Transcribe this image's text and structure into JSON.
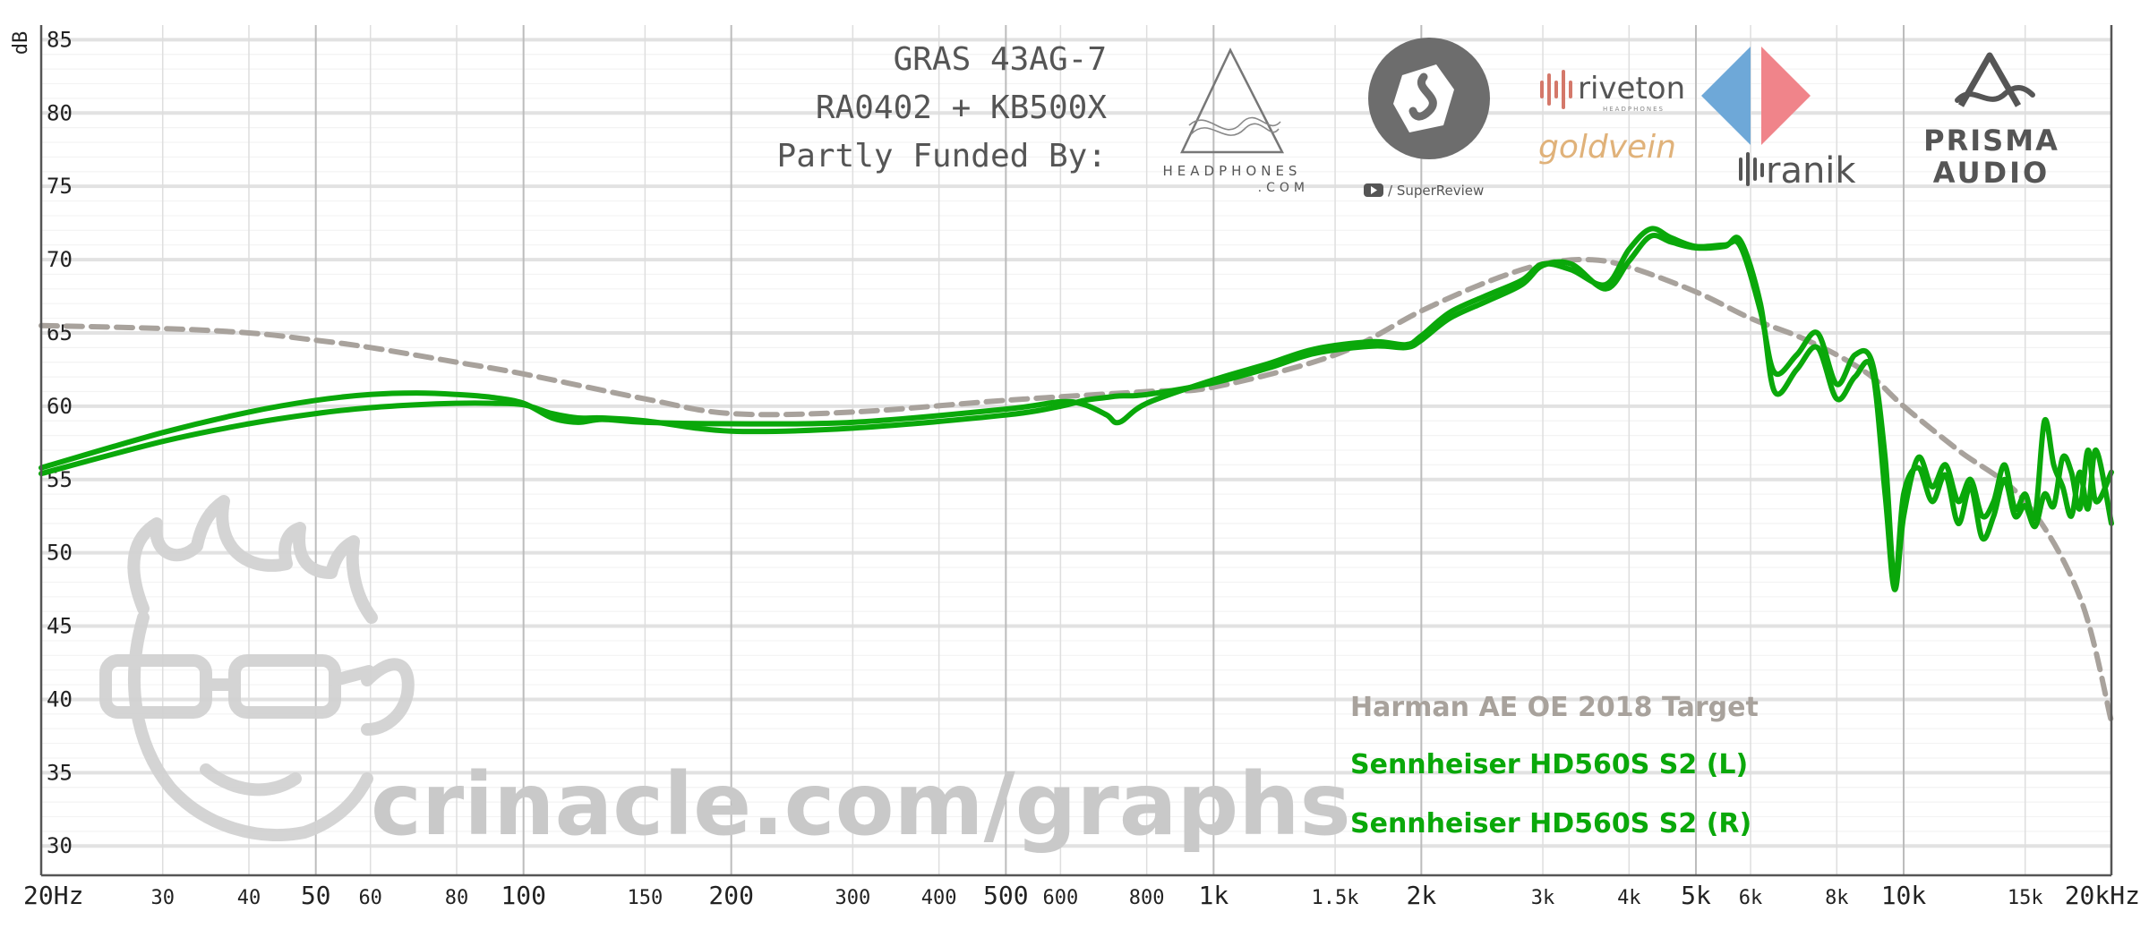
{
  "chart_data": {
    "type": "line",
    "xscale": "log",
    "xlim": [
      20,
      20000
    ],
    "ylim": [
      28,
      86
    ],
    "ylabel": "dB",
    "grid": true,
    "x_ticks": [
      {
        "v": 20,
        "label": "20Hz",
        "major": true
      },
      {
        "v": 30,
        "label": "30",
        "major": false
      },
      {
        "v": 40,
        "label": "40",
        "major": false
      },
      {
        "v": 50,
        "label": "50",
        "major": true
      },
      {
        "v": 60,
        "label": "60",
        "major": false
      },
      {
        "v": 80,
        "label": "80",
        "major": false
      },
      {
        "v": 100,
        "label": "100",
        "major": true
      },
      {
        "v": 150,
        "label": "150",
        "major": false
      },
      {
        "v": 200,
        "label": "200",
        "major": true
      },
      {
        "v": 300,
        "label": "300",
        "major": false
      },
      {
        "v": 400,
        "label": "400",
        "major": false
      },
      {
        "v": 500,
        "label": "500",
        "major": true
      },
      {
        "v": 600,
        "label": "600",
        "major": false
      },
      {
        "v": 800,
        "label": "800",
        "major": false
      },
      {
        "v": 1000,
        "label": "1k",
        "major": true
      },
      {
        "v": 1500,
        "label": "1.5k",
        "major": false
      },
      {
        "v": 2000,
        "label": "2k",
        "major": true
      },
      {
        "v": 3000,
        "label": "3k",
        "major": false
      },
      {
        "v": 4000,
        "label": "4k",
        "major": false
      },
      {
        "v": 5000,
        "label": "5k",
        "major": true
      },
      {
        "v": 6000,
        "label": "6k",
        "major": false
      },
      {
        "v": 8000,
        "label": "8k",
        "major": false
      },
      {
        "v": 10000,
        "label": "10k",
        "major": true
      },
      {
        "v": 15000,
        "label": "15k",
        "major": false
      },
      {
        "v": 20000,
        "label": "20kHz",
        "major": true
      }
    ],
    "y_ticks": [
      30,
      35,
      40,
      45,
      50,
      55,
      60,
      65,
      70,
      75,
      80,
      85
    ],
    "series": [
      {
        "name": "Harman AE OE 2018 Target",
        "color": "#a8a29c",
        "dashed": true,
        "x": [
          20,
          30,
          40,
          50,
          60,
          80,
          100,
          150,
          200,
          300,
          500,
          800,
          1000,
          1500,
          2000,
          2500,
          3000,
          3500,
          4000,
          5000,
          6000,
          7000,
          8000,
          9000,
          10000,
          12000,
          15000,
          18000,
          20000
        ],
        "y": [
          65.5,
          65.3,
          65.0,
          64.5,
          64.0,
          63.0,
          62.2,
          60.5,
          59.5,
          59.6,
          60.4,
          61.0,
          61.3,
          63.5,
          66.5,
          68.5,
          69.7,
          70.0,
          69.5,
          67.8,
          66.0,
          64.8,
          63.5,
          62.0,
          60.0,
          57.0,
          53.5,
          47.0,
          38.5
        ]
      },
      {
        "name": "Sennheiser HD560S S2 (L)",
        "color": "#0aa80a",
        "dashed": false,
        "x": [
          20,
          30,
          40,
          50,
          60,
          70,
          80,
          90,
          100,
          110,
          120,
          130,
          150,
          200,
          300,
          500,
          600,
          650,
          700,
          730,
          800,
          1000,
          1200,
          1400,
          1700,
          1900,
          2000,
          2200,
          2500,
          2800,
          3000,
          3300,
          3700,
          4000,
          4300,
          4600,
          5000,
          5500,
          5800,
          6200,
          6500,
          7000,
          7500,
          8000,
          8500,
          9000,
          9400,
          9700,
          10000,
          10500,
          11000,
          11500,
          12000,
          12500,
          13000,
          13500,
          14000,
          14500,
          15000,
          15500,
          16000,
          16500,
          17000,
          17500,
          18000,
          18500,
          19000,
          20000
        ],
        "y": [
          55.8,
          58.2,
          59.6,
          60.4,
          60.8,
          60.9,
          60.8,
          60.6,
          60.2,
          59.2,
          58.9,
          59.1,
          58.9,
          58.8,
          58.9,
          59.8,
          60.3,
          60.1,
          59.4,
          58.9,
          60.2,
          61.8,
          62.9,
          63.9,
          64.4,
          64.2,
          64.8,
          66.4,
          67.6,
          68.6,
          69.7,
          69.3,
          68.3,
          70.7,
          72.1,
          71.5,
          70.9,
          71.0,
          70.9,
          66.5,
          62.3,
          63.5,
          65.0,
          61.5,
          63.5,
          63.0,
          56.5,
          48.0,
          54.0,
          55.8,
          53.5,
          55.3,
          52.0,
          54.5,
          51.0,
          52.5,
          55.0,
          52.5,
          53.2,
          51.8,
          54.0,
          53.2,
          56.5,
          55.5,
          53.0,
          57.0,
          53.5,
          55.5
        ]
      },
      {
        "name": "Sennheiser HD560S S2 (R)",
        "color": "#0aa80a",
        "dashed": false,
        "x": [
          20,
          30,
          40,
          50,
          60,
          70,
          80,
          90,
          100,
          110,
          120,
          130,
          150,
          200,
          300,
          500,
          600,
          650,
          700,
          730,
          800,
          1000,
          1200,
          1400,
          1700,
          1900,
          2000,
          2200,
          2500,
          2800,
          3000,
          3300,
          3700,
          4000,
          4300,
          4600,
          5000,
          5500,
          5800,
          6200,
          6500,
          7000,
          7500,
          8000,
          8500,
          9000,
          9400,
          9700,
          10000,
          10500,
          11000,
          11500,
          12000,
          12500,
          13000,
          13500,
          14000,
          14500,
          15000,
          15500,
          16000,
          16500,
          17000,
          17500,
          18000,
          18500,
          19000,
          20000
        ],
        "y": [
          55.4,
          57.6,
          58.8,
          59.5,
          59.9,
          60.1,
          60.2,
          60.2,
          60.1,
          59.5,
          59.2,
          59.2,
          59.0,
          58.3,
          58.5,
          59.4,
          60.0,
          60.4,
          60.6,
          60.7,
          60.8,
          61.6,
          62.6,
          63.6,
          64.1,
          64.0,
          64.5,
          66.0,
          67.2,
          68.3,
          69.6,
          69.7,
          68.0,
          69.9,
          71.6,
          71.2,
          70.8,
          70.9,
          71.3,
          67.0,
          61.0,
          62.5,
          64.0,
          60.5,
          62.0,
          62.5,
          54.0,
          47.5,
          52.5,
          56.5,
          54.5,
          56.0,
          53.5,
          55.0,
          52.5,
          53.5,
          56.0,
          53.0,
          54.0,
          52.5,
          59.0,
          56.0,
          54.5,
          52.5,
          55.5,
          53.0,
          57.0,
          52.0
        ]
      }
    ]
  },
  "header": {
    "rig_line1": "GRAS 43AG-7",
    "rig_line2": "RA0402 + KB500X",
    "funded_by": "Partly Funded By:"
  },
  "sponsors": {
    "headphones_com_line1": "HEADPHONES",
    "headphones_com_line2": ".COM",
    "superreview": "/ SuperReview",
    "riveton": "riveton",
    "riveton_sub": "HEADPHONES",
    "goldvein": "goldvein",
    "sonarworks_ranik": "ranik",
    "prisma_line1": "PRISMA",
    "prisma_line2": "AUDIO"
  },
  "watermark": {
    "url": "crinacle.com/graphs"
  },
  "colors": {
    "target": "#a8a29c",
    "measurement": "#0aa80a",
    "grid": "#e3e3e3",
    "watermark": "#c9c9c9"
  }
}
